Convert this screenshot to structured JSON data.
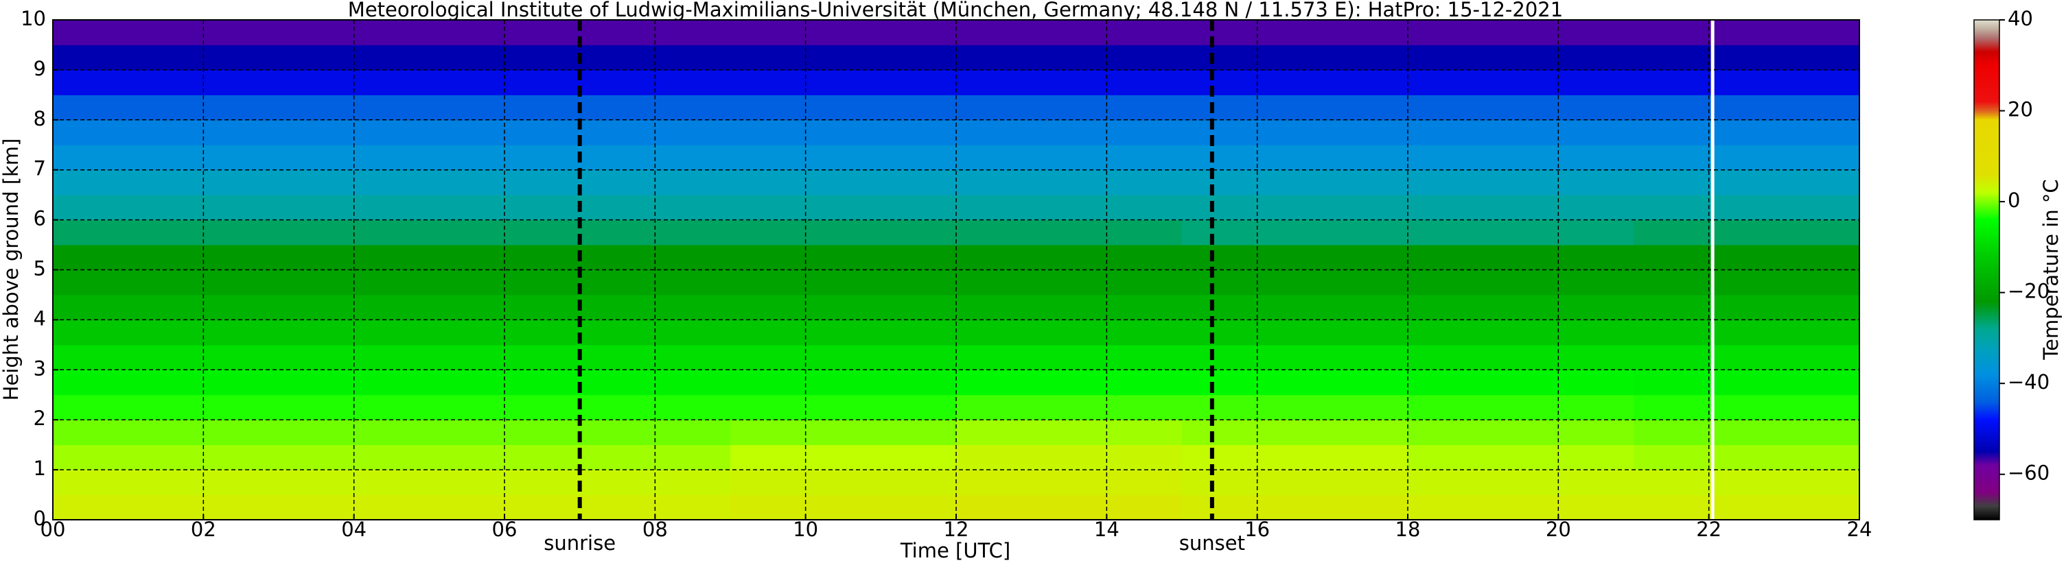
{
  "chart_data": {
    "type": "heatmap",
    "title": "Meteorological Institute of Ludwig-Maximilians-Universität (München, Germany; 48.148 N / 11.573 E):    HatPro: 15-12-2021",
    "x_label": "Time [UTC]",
    "y_label": "Height above ground [km]",
    "xlim": [
      0,
      24
    ],
    "ylim": [
      0,
      10
    ],
    "xticks": [
      {
        "value": 0,
        "label": "00"
      },
      {
        "value": 2,
        "label": "02"
      },
      {
        "value": 4,
        "label": "04"
      },
      {
        "value": 6,
        "label": "06"
      },
      {
        "value": 8,
        "label": "08"
      },
      10,
      12,
      14,
      16,
      18,
      20,
      22,
      24
    ],
    "yticks": [
      0,
      1,
      2,
      3,
      4,
      5,
      6,
      7,
      8,
      9,
      10
    ],
    "grid": true,
    "x_edges": [
      0,
      3,
      6,
      9,
      12,
      15,
      18,
      21,
      24
    ],
    "y_edges": [
      0,
      0.5,
      1,
      1.5,
      2,
      2.5,
      3,
      3.5,
      4,
      4.5,
      5,
      5.5,
      6,
      6.5,
      7,
      7.5,
      8,
      8.5,
      9,
      9.5,
      10
    ],
    "z": [
      [
        4,
        4,
        4,
        4.5,
        5,
        4.5,
        4,
        4
      ],
      [
        3,
        3,
        3,
        3.5,
        4,
        3.5,
        3,
        3
      ],
      [
        1,
        1,
        1,
        2,
        3,
        2.5,
        1.5,
        1
      ],
      [
        -0.5,
        -0.5,
        -0.5,
        0,
        1,
        0.5,
        0,
        -0.5
      ],
      [
        -3,
        -3,
        -3,
        -3,
        -2,
        -2,
        -2.5,
        -3
      ],
      [
        -6,
        -6,
        -6,
        -6,
        -5,
        -5,
        -5.5,
        -6
      ],
      [
        -9,
        -9,
        -9,
        -9,
        -8.5,
        -8.5,
        -9,
        -9
      ],
      [
        -13,
        -13,
        -13,
        -13,
        -13,
        -13,
        -13,
        -13
      ],
      [
        -17,
        -17,
        -17,
        -17,
        -17,
        -17,
        -17,
        -17
      ],
      [
        -20,
        -20,
        -20,
        -20,
        -20,
        -20,
        -20,
        -20
      ],
      [
        -22,
        -22,
        -22,
        -22,
        -22,
        -22,
        -22,
        -22
      ],
      [
        -26,
        -26,
        -26,
        -26,
        -26,
        -27,
        -27,
        -26
      ],
      [
        -30,
        -30,
        -30,
        -30,
        -30,
        -30,
        -30,
        -30
      ],
      [
        -33,
        -33,
        -33,
        -33,
        -33,
        -33,
        -33,
        -33
      ],
      [
        -37,
        -37,
        -37,
        -37,
        -37,
        -37,
        -37,
        -37
      ],
      [
        -40,
        -40,
        -40,
        -40,
        -40,
        -40,
        -40,
        -40
      ],
      [
        -44,
        -44,
        -44,
        -44,
        -44,
        -44,
        -44,
        -44
      ],
      [
        -50,
        -50,
        -50,
        -50,
        -50,
        -50,
        -50,
        -50
      ],
      [
        -55,
        -55,
        -55,
        -55,
        -55,
        -55,
        -55,
        -55
      ],
      [
        -57,
        -57,
        -57,
        -57,
        -57,
        -57,
        -57,
        -57
      ]
    ],
    "annotations": [
      {
        "x": 7.0,
        "label": "sunrise"
      },
      {
        "x": 15.4,
        "label": "sunset"
      }
    ],
    "gaps": [
      22.05
    ],
    "colorbar": {
      "label": "Temperature in °C",
      "clim": [
        -70,
        40
      ],
      "ticks": [
        {
          "value": -60,
          "label": "−60"
        },
        {
          "value": -40,
          "label": "−40"
        },
        {
          "value": -20,
          "label": "−20"
        },
        0,
        20,
        40
      ],
      "stops": [
        [
          -70,
          "#000000"
        ],
        [
          -67,
          "#404040"
        ],
        [
          -64,
          "#800080"
        ],
        [
          -58,
          "#7000a0"
        ],
        [
          -55,
          "#0000b0"
        ],
        [
          -48,
          "#0010ff"
        ],
        [
          -44,
          "#0060e0"
        ],
        [
          -38,
          "#0090e0"
        ],
        [
          -33,
          "#00a0c0"
        ],
        [
          -28,
          "#00a890"
        ],
        [
          -22,
          "#009900"
        ],
        [
          -12,
          "#00cc00"
        ],
        [
          -4,
          "#00ff00"
        ],
        [
          2,
          "#bfff00"
        ],
        [
          6,
          "#e0e000"
        ],
        [
          18,
          "#e8d800"
        ],
        [
          20,
          "#e06020"
        ],
        [
          22,
          "#ee1010"
        ],
        [
          30,
          "#ee0000"
        ],
        [
          33,
          "#cc0000"
        ],
        [
          36,
          "#b07070"
        ],
        [
          38,
          "#c0b0a0"
        ],
        [
          40,
          "#e0e0d0"
        ]
      ]
    }
  }
}
